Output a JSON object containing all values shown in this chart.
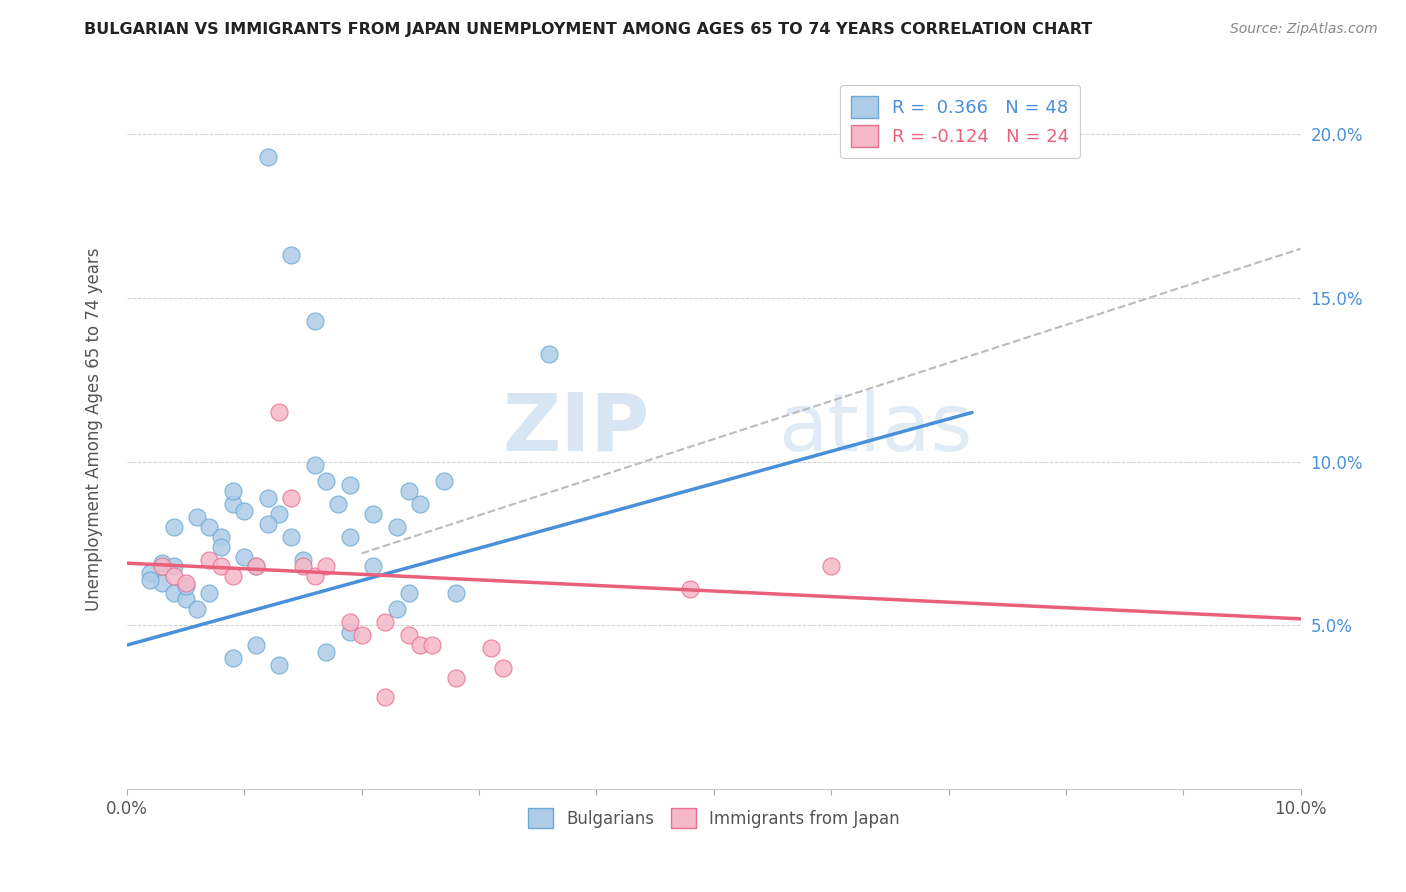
{
  "title": "BULGARIAN VS IMMIGRANTS FROM JAPAN UNEMPLOYMENT AMONG AGES 65 TO 74 YEARS CORRELATION CHART",
  "source": "Source: ZipAtlas.com",
  "ylabel": "Unemployment Among Ages 65 to 74 years",
  "xlim": [
    0.0,
    0.1
  ],
  "ylim": [
    0.0,
    0.22
  ],
  "xtick_positions": [
    0.0,
    0.01,
    0.02,
    0.03,
    0.04,
    0.05,
    0.06,
    0.07,
    0.08,
    0.09,
    0.1
  ],
  "xtick_labels_show": {
    "0.0": "0.0%",
    "0.10": "10.0%"
  },
  "yticks_right": [
    0.05,
    0.1,
    0.15,
    0.2
  ],
  "r_blue": "0.366",
  "n_blue": "48",
  "r_pink": "-0.124",
  "n_pink": "24",
  "blue_fill": "#AECCE8",
  "pink_fill": "#F5B8C8",
  "blue_edge": "#6AAAD4",
  "pink_edge": "#E87090",
  "blue_line_color": "#4A90D9",
  "pink_line_color": "#E8607A",
  "dashed_line_color": "#BBBBBB",
  "watermark_zip": "ZIP",
  "watermark_atlas": "atlas",
  "blue_scatter": [
    [
      0.002,
      0.066
    ],
    [
      0.003,
      0.069
    ],
    [
      0.003,
      0.063
    ],
    [
      0.004,
      0.068
    ],
    [
      0.004,
      0.06
    ],
    [
      0.002,
      0.064
    ],
    [
      0.005,
      0.058
    ],
    [
      0.005,
      0.062
    ],
    [
      0.006,
      0.055
    ],
    [
      0.007,
      0.06
    ],
    [
      0.004,
      0.08
    ],
    [
      0.006,
      0.083
    ],
    [
      0.007,
      0.08
    ],
    [
      0.008,
      0.077
    ],
    [
      0.009,
      0.087
    ],
    [
      0.008,
      0.074
    ],
    [
      0.01,
      0.071
    ],
    [
      0.011,
      0.068
    ],
    [
      0.012,
      0.089
    ],
    [
      0.013,
      0.084
    ],
    [
      0.009,
      0.091
    ],
    [
      0.01,
      0.085
    ],
    [
      0.012,
      0.081
    ],
    [
      0.014,
      0.077
    ],
    [
      0.015,
      0.07
    ],
    [
      0.017,
      0.094
    ],
    [
      0.018,
      0.087
    ],
    [
      0.016,
      0.099
    ],
    [
      0.019,
      0.093
    ],
    [
      0.021,
      0.084
    ],
    [
      0.019,
      0.077
    ],
    [
      0.023,
      0.08
    ],
    [
      0.024,
      0.091
    ],
    [
      0.025,
      0.087
    ],
    [
      0.027,
      0.094
    ],
    [
      0.021,
      0.068
    ],
    [
      0.024,
      0.06
    ],
    [
      0.023,
      0.055
    ],
    [
      0.019,
      0.048
    ],
    [
      0.017,
      0.042
    ],
    [
      0.013,
      0.038
    ],
    [
      0.011,
      0.044
    ],
    [
      0.009,
      0.04
    ],
    [
      0.036,
      0.133
    ],
    [
      0.012,
      0.193
    ],
    [
      0.014,
      0.163
    ],
    [
      0.016,
      0.143
    ],
    [
      0.028,
      0.06
    ]
  ],
  "pink_scatter": [
    [
      0.003,
      0.068
    ],
    [
      0.004,
      0.065
    ],
    [
      0.005,
      0.063
    ],
    [
      0.007,
      0.07
    ],
    [
      0.008,
      0.068
    ],
    [
      0.009,
      0.065
    ],
    [
      0.011,
      0.068
    ],
    [
      0.013,
      0.115
    ],
    [
      0.014,
      0.089
    ],
    [
      0.015,
      0.068
    ],
    [
      0.016,
      0.065
    ],
    [
      0.017,
      0.068
    ],
    [
      0.019,
      0.051
    ],
    [
      0.02,
      0.047
    ],
    [
      0.022,
      0.051
    ],
    [
      0.024,
      0.047
    ],
    [
      0.025,
      0.044
    ],
    [
      0.026,
      0.044
    ],
    [
      0.028,
      0.034
    ],
    [
      0.031,
      0.043
    ],
    [
      0.032,
      0.037
    ],
    [
      0.048,
      0.061
    ],
    [
      0.06,
      0.068
    ],
    [
      0.022,
      0.028
    ]
  ],
  "blue_line_x": [
    0.0,
    0.072
  ],
  "blue_line_y": [
    0.044,
    0.115
  ],
  "pink_line_x": [
    0.0,
    0.1
  ],
  "pink_line_y": [
    0.069,
    0.052
  ],
  "dashed_line_x": [
    0.02,
    0.1
  ],
  "dashed_line_y": [
    0.072,
    0.165
  ]
}
